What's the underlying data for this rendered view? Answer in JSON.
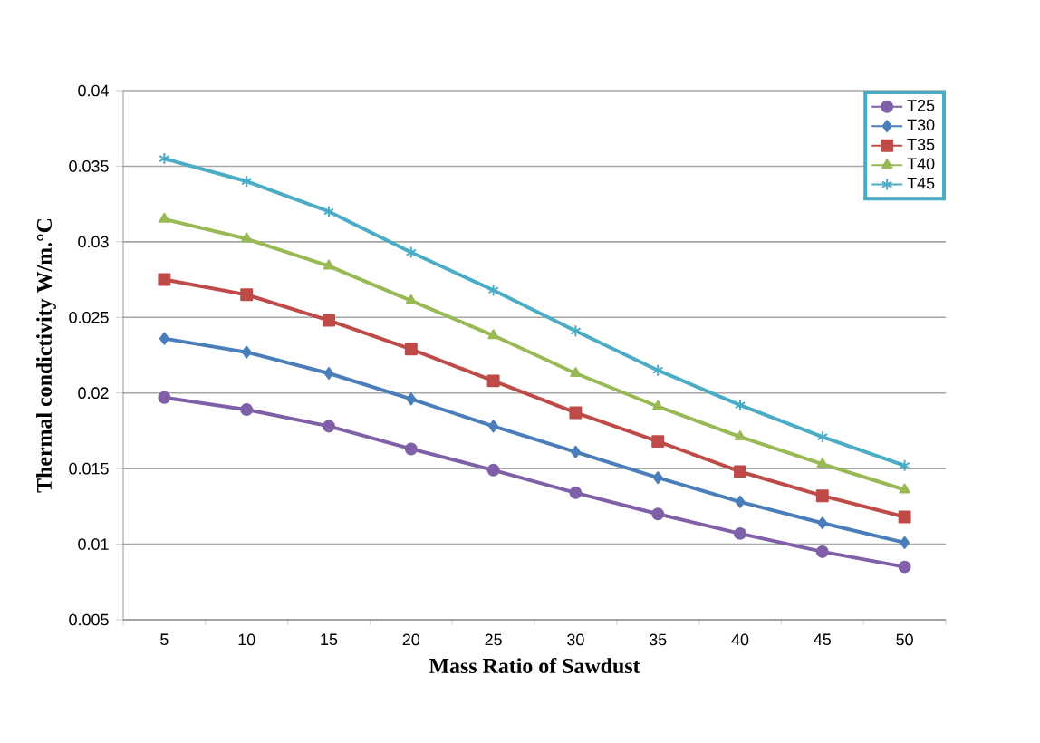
{
  "chart_data": {
    "type": "line",
    "xlabel": "Mass Ratio of Sawdust",
    "ylabel": "Thermal condictivity  W/m.°C",
    "categories": [
      "5",
      "10",
      "15",
      "20",
      "25",
      "30",
      "35",
      "40",
      "45",
      "50"
    ],
    "series": [
      {
        "name": "T25",
        "color": "#7f5fa8",
        "marker": "circle",
        "values": [
          0.0197,
          0.0189,
          0.0178,
          0.0163,
          0.0149,
          0.0134,
          0.012,
          0.0107,
          0.0095,
          0.0085
        ]
      },
      {
        "name": "T30",
        "color": "#4a7ebb",
        "marker": "diamond",
        "values": [
          0.0236,
          0.0227,
          0.0213,
          0.0196,
          0.0178,
          0.0161,
          0.0144,
          0.0128,
          0.0114,
          0.0101
        ]
      },
      {
        "name": "T35",
        "color": "#be4b48",
        "marker": "square",
        "values": [
          0.0275,
          0.0265,
          0.0248,
          0.0229,
          0.0208,
          0.0187,
          0.0168,
          0.0148,
          0.0132,
          0.0118
        ]
      },
      {
        "name": "T40",
        "color": "#98b954",
        "marker": "triangle",
        "values": [
          0.0315,
          0.0302,
          0.0284,
          0.0261,
          0.0238,
          0.0213,
          0.0191,
          0.0171,
          0.0153,
          0.0136
        ]
      },
      {
        "name": "T45",
        "color": "#4bacc6",
        "marker": "cross",
        "values": [
          0.0355,
          0.034,
          0.032,
          0.0293,
          0.0268,
          0.0241,
          0.0215,
          0.0192,
          0.0171,
          0.0152
        ]
      }
    ],
    "ylim": [
      0.005,
      0.04
    ],
    "yticks": [
      0.005,
      0.01,
      0.015,
      0.02,
      0.025,
      0.03,
      0.035,
      0.04
    ],
    "grid": "y",
    "legend": "top right"
  }
}
